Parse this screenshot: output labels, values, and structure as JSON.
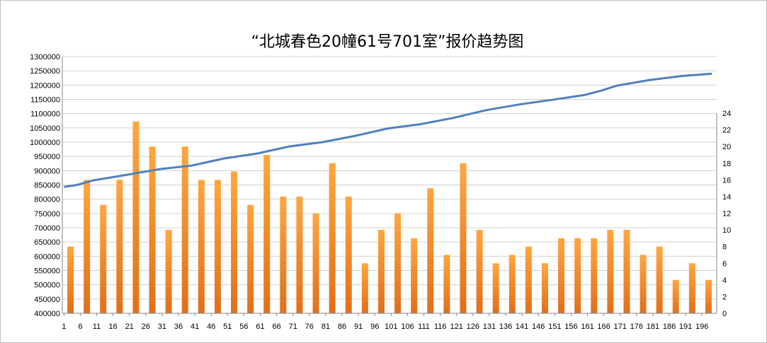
{
  "chart_data": {
    "type": "bar+line",
    "title": "“北城春色20幢61号701室”报价趋势图",
    "x_ticks": [
      "1",
      "6",
      "11",
      "16",
      "21",
      "26",
      "31",
      "36",
      "41",
      "46",
      "51",
      "56",
      "61",
      "66",
      "71",
      "76",
      "81",
      "86",
      "91",
      "96",
      "101",
      "106",
      "111",
      "116",
      "121",
      "126",
      "131",
      "136",
      "141",
      "146",
      "151",
      "156",
      "161",
      "166",
      "171",
      "176",
      "181",
      "186",
      "191",
      "196"
    ],
    "y_left": {
      "min": 400000,
      "max": 1300000,
      "step": 50000,
      "ticks": [
        "400000",
        "450000",
        "500000",
        "550000",
        "600000",
        "650000",
        "700000",
        "750000",
        "800000",
        "850000",
        "900000",
        "950000",
        "1000000",
        "1050000",
        "1100000",
        "1150000",
        "1200000",
        "1250000",
        "1300000"
      ]
    },
    "y_right": {
      "min": 0,
      "max": 24,
      "step": 2,
      "ticks": [
        "0",
        "2",
        "4",
        "6",
        "8",
        "10",
        "12",
        "14",
        "16",
        "18",
        "20",
        "22",
        "24"
      ]
    },
    "bar_series": {
      "axis": "right",
      "color": "#f7922b",
      "x": [
        3,
        8,
        13,
        18,
        23,
        28,
        33,
        38,
        43,
        48,
        53,
        58,
        63,
        68,
        73,
        78,
        83,
        88,
        93,
        98,
        103,
        108,
        113,
        118,
        123,
        128,
        133,
        138,
        143,
        148,
        153,
        158,
        163,
        168,
        173,
        178,
        183,
        188,
        193,
        198
      ],
      "values": [
        8,
        16,
        13,
        16,
        23,
        20,
        10,
        20,
        16,
        16,
        17,
        13,
        19,
        14,
        14,
        12,
        18,
        14,
        6,
        10,
        12,
        9,
        15,
        7,
        18,
        10,
        6,
        7,
        8,
        6,
        9,
        9,
        9,
        10,
        10,
        7,
        8,
        4,
        6,
        4
      ]
    },
    "line_series": {
      "axis": "left",
      "color": "#4f81bd",
      "x": [
        1,
        5,
        10,
        20,
        30,
        40,
        50,
        60,
        70,
        80,
        90,
        100,
        110,
        120,
        130,
        140,
        150,
        160,
        165,
        170,
        180,
        190,
        199
      ],
      "values": [
        843000,
        850000,
        866000,
        885000,
        905000,
        918000,
        943000,
        960000,
        985000,
        1000000,
        1022000,
        1048000,
        1063000,
        1085000,
        1112000,
        1132000,
        1148000,
        1165000,
        1180000,
        1198000,
        1218000,
        1232000,
        1240000
      ]
    },
    "grid": true,
    "legend": "none"
  }
}
